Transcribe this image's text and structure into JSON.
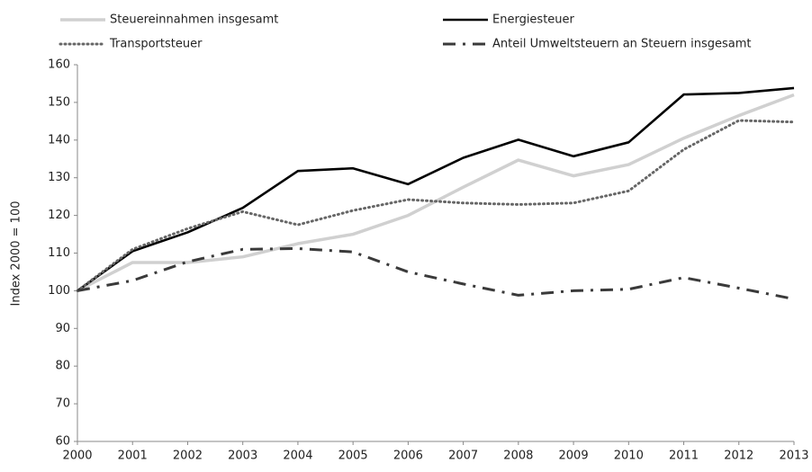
{
  "chart_data": {
    "type": "line",
    "y_label": "Index 2000 = 100",
    "x": [
      2000,
      2001,
      2002,
      2003,
      2004,
      2005,
      2006,
      2007,
      2008,
      2009,
      2010,
      2011,
      2012,
      2013
    ],
    "xlim": [
      2000,
      2013
    ],
    "xticks": [
      2000,
      2001,
      2002,
      2003,
      2004,
      2005,
      2006,
      2007,
      2008,
      2009,
      2010,
      2011,
      2012,
      2013
    ],
    "ylim": [
      60,
      160
    ],
    "yticks": [
      60,
      70,
      80,
      90,
      100,
      110,
      120,
      130,
      140,
      150,
      160
    ],
    "grid": false,
    "legend": "top",
    "series": [
      {
        "name": "Steuereinnahmen insgesamt",
        "color": "#d0d0d0",
        "style": "solid",
        "values": [
          100,
          107.5,
          107.5,
          109,
          112.5,
          115,
          120,
          127.5,
          134.7,
          130.5,
          133.5,
          140.5,
          146.5,
          152
        ]
      },
      {
        "name": "Energiesteuer",
        "color": "#000000",
        "style": "solid",
        "values": [
          100,
          110.5,
          115.5,
          122,
          131.8,
          132.5,
          128.3,
          135.3,
          140.1,
          135.7,
          139.4,
          152.1,
          152.5,
          153.8
        ]
      },
      {
        "name": "Transportsteuer",
        "color": "#666666",
        "style": "dotted",
        "values": [
          100,
          111,
          116.5,
          121,
          117.5,
          121.3,
          124.2,
          123.3,
          122.9,
          123.3,
          126.5,
          137.5,
          145.2,
          144.8
        ]
      },
      {
        "name": "Anteil Umweltsteuern an Steuern insgesamt",
        "color": "#3a3a3a",
        "style": "dashdot",
        "values": [
          100,
          102.7,
          107.7,
          111,
          111.2,
          110.3,
          105,
          101.8,
          98.8,
          100,
          100.4,
          103.5,
          100.7,
          97.8
        ]
      }
    ]
  }
}
